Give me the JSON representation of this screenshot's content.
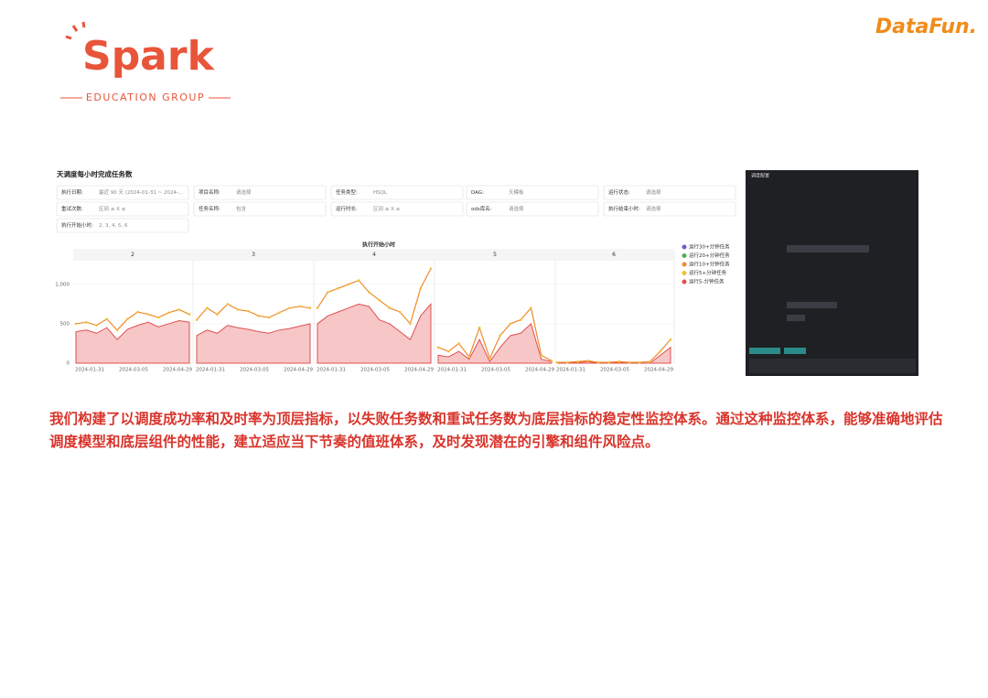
{
  "header": {
    "logo": "Spark",
    "logo_sub": "EDUCATION GROUP",
    "brand": "DataFun."
  },
  "dashboard": {
    "title": "天调度每小时完成任务数",
    "filters": [
      [
        {
          "label": "执行日期:",
          "value": "最近 90 天 (2024-01-31 ~ 2024-..."
        },
        {
          "label": "项目名称:",
          "value": "请选择"
        },
        {
          "label": "任务类型:",
          "value": "HSQL"
        },
        {
          "label": "DAG:",
          "value": "天模板"
        },
        {
          "label": "运行状态:",
          "value": "请选择"
        }
      ],
      [
        {
          "label": "重试次数:",
          "value": "区间      ≤ X ≤"
        },
        {
          "label": "任务名称:",
          "value": "包含"
        },
        {
          "label": "运行时长:",
          "value": "区间      ≤ X ≤"
        },
        {
          "label": "ods库名:",
          "value": "请选择"
        },
        {
          "label": "执行结束小时:",
          "value": "请选择"
        }
      ],
      [
        {
          "label": "执行开始小时:",
          "value": "2, 3, 4, 5, 6"
        }
      ]
    ],
    "side_title": "调度配置"
  },
  "chart_data": {
    "type": "line",
    "title": "执行开始小时",
    "ylim": [
      0,
      1300
    ],
    "yticks": [
      0,
      500,
      {
        "value": 1000,
        "label": "1,000"
      }
    ],
    "xtick_labels": [
      "2024-01-31",
      "2024-03-05",
      "2024-04-29"
    ],
    "series": [
      {
        "name": "运行30+分钟任务",
        "color": "#6b5bd6"
      },
      {
        "name": "运行20+分钟任务",
        "color": "#4caf50"
      },
      {
        "name": "运行10+分钟任务",
        "color": "#ef8a2b"
      },
      {
        "name": "运行5+分钟任务",
        "color": "#f2c037"
      },
      {
        "name": "运行5-分钟任务",
        "color": "#e05050"
      }
    ],
    "panels": [
      {
        "label": "2",
        "values_low": [
          400,
          420,
          380,
          450,
          300,
          430,
          480,
          520,
          460,
          500,
          540,
          520
        ],
        "values_top": [
          500,
          520,
          480,
          560,
          420,
          560,
          650,
          620,
          580,
          640,
          680,
          620
        ]
      },
      {
        "label": "3",
        "values_low": [
          350,
          420,
          380,
          480,
          450,
          430,
          400,
          380,
          420,
          440,
          470,
          500
        ],
        "values_top": [
          550,
          700,
          620,
          750,
          680,
          660,
          600,
          580,
          640,
          700,
          720,
          700
        ]
      },
      {
        "label": "4",
        "values_low": [
          500,
          600,
          650,
          700,
          750,
          720,
          550,
          500,
          400,
          300,
          600,
          750
        ],
        "values_top": [
          700,
          900,
          950,
          1000,
          1050,
          900,
          800,
          700,
          650,
          500,
          950,
          1200
        ]
      },
      {
        "label": "5",
        "values_low": [
          100,
          80,
          150,
          50,
          300,
          20,
          200,
          350,
          380,
          500,
          50,
          20
        ],
        "values_top": [
          200,
          150,
          250,
          80,
          450,
          60,
          350,
          500,
          550,
          700,
          100,
          30
        ]
      },
      {
        "label": "6",
        "values_low": [
          0,
          0,
          10,
          20,
          0,
          0,
          10,
          0,
          0,
          0,
          100,
          200
        ],
        "values_top": [
          10,
          10,
          20,
          30,
          10,
          10,
          20,
          10,
          10,
          20,
          150,
          300
        ]
      }
    ]
  },
  "paragraph": "我们构建了以调度成功率和及时率为顶层指标，以失败任务数和重试任务数为底层指标的稳定性监控体系。通过这种监控体系，能够准确地评估调度模型和底层组件的性能，建立适应当下节奏的值班体系，及时发现潜在的引擎和组件风险点。"
}
